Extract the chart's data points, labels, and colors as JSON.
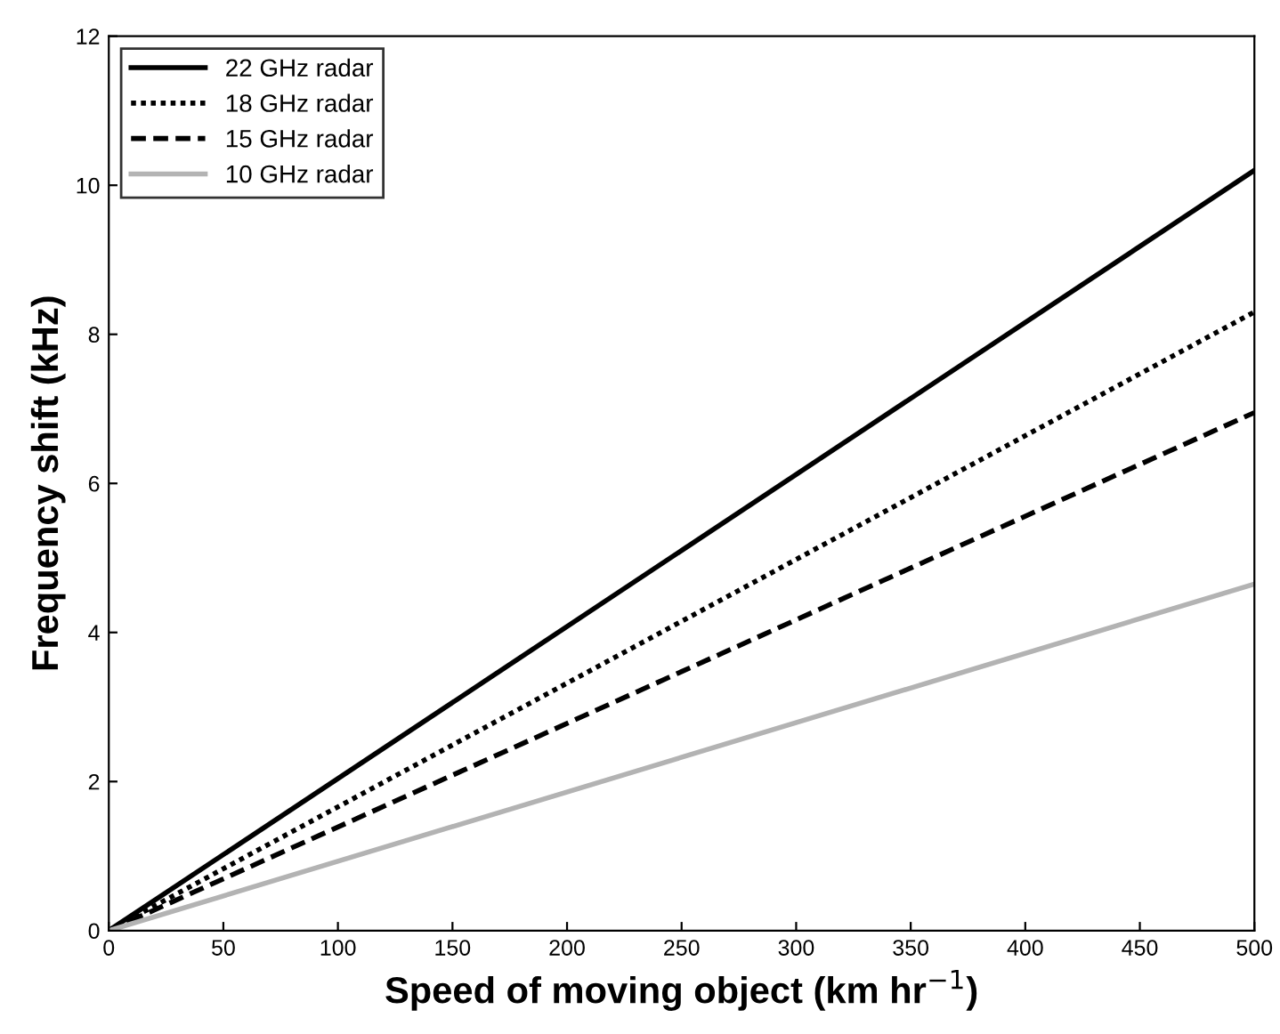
{
  "chart_data": {
    "type": "line",
    "xlabel": "Speed of moving object (km hr$^{−1}$)",
    "ylabel": "Frequency shift (kHz)",
    "x": [
      0,
      500
    ],
    "series": [
      {
        "name": "22 GHz radar",
        "color": "#000000",
        "line_style": "solid",
        "values": [
          0,
          10.2
        ]
      },
      {
        "name": "18 GHz radar",
        "color": "#000000",
        "line_style": "dotted",
        "values": [
          0,
          8.3
        ]
      },
      {
        "name": "15 GHz radar",
        "color": "#000000",
        "line_style": "dashed",
        "values": [
          0,
          6.95
        ]
      },
      {
        "name": "10 GHz radar",
        "color": "#b3b3b3",
        "line_style": "solid",
        "values": [
          0,
          4.65
        ]
      }
    ],
    "xlim": [
      0,
      500
    ],
    "xticks": [
      0,
      50,
      100,
      150,
      200,
      250,
      300,
      350,
      400,
      450,
      500
    ],
    "ylim": [
      0,
      12
    ],
    "yticks": [
      0,
      2,
      4,
      6,
      8,
      10,
      12
    ],
    "grid": false,
    "legend": "top left",
    "marker": "none"
  }
}
